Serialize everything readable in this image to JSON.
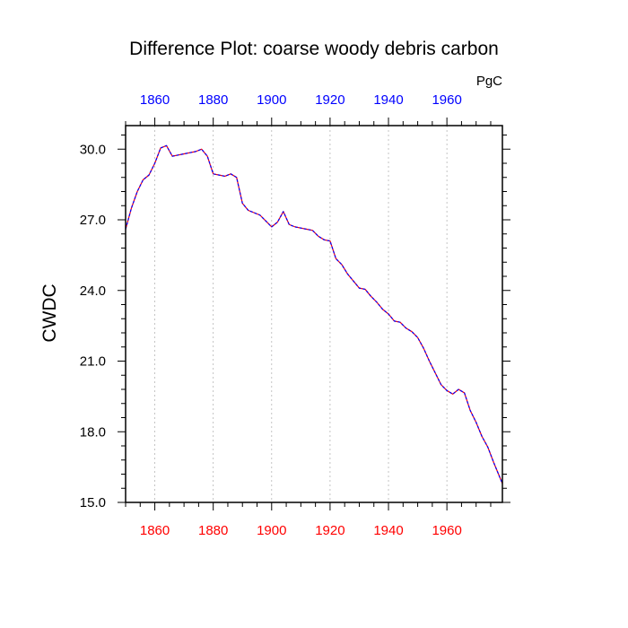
{
  "chart_data": {
    "type": "line",
    "title": "Difference Plot: coarse woody debris carbon",
    "units": "PgC",
    "xlabel": "",
    "ylabel": "CWDC",
    "xlim": [
      1850,
      1979
    ],
    "ylim": [
      15.0,
      31.0
    ],
    "x_ticks_major": [
      1860,
      1880,
      1900,
      1920,
      1940,
      1960
    ],
    "y_ticks_major": [
      15.0,
      18.0,
      21.0,
      24.0,
      27.0,
      30.0
    ],
    "y_tick_labels": [
      "15.0",
      "18.0",
      "21.0",
      "24.0",
      "27.0",
      "30.0"
    ],
    "x_tick_labels_top": [
      "1860",
      "1880",
      "1900",
      "1920",
      "1940",
      "1960"
    ],
    "x_tick_labels_bottom": [
      "1860",
      "1880",
      "1900",
      "1920",
      "1940",
      "1960"
    ],
    "top_axis_color": "#0000ff",
    "bottom_axis_color": "#ff0000",
    "grid": "vertical dashed at major x ticks",
    "series": [
      {
        "color": "#ff0000",
        "style": "solid",
        "x": [
          1850,
          1852,
          1854,
          1856,
          1858,
          1860,
          1862,
          1864,
          1866,
          1868,
          1870,
          1872,
          1874,
          1876,
          1878,
          1880,
          1882,
          1884,
          1886,
          1888,
          1890,
          1892,
          1894,
          1896,
          1898,
          1900,
          1902,
          1904,
          1906,
          1908,
          1910,
          1912,
          1914,
          1916,
          1918,
          1920,
          1922,
          1924,
          1926,
          1928,
          1930,
          1932,
          1934,
          1936,
          1938,
          1940,
          1942,
          1944,
          1946,
          1948,
          1950,
          1952,
          1954,
          1956,
          1958,
          1960,
          1962,
          1964,
          1966,
          1968,
          1970,
          1972,
          1974,
          1976,
          1979
        ],
        "values": [
          26.6,
          27.5,
          28.2,
          28.7,
          28.9,
          29.4,
          30.05,
          30.15,
          29.7,
          29.75,
          29.8,
          29.85,
          29.9,
          30.0,
          29.7,
          28.95,
          28.9,
          28.85,
          28.95,
          28.8,
          27.7,
          27.4,
          27.3,
          27.2,
          26.95,
          26.7,
          26.9,
          27.35,
          26.8,
          26.7,
          26.65,
          26.6,
          26.55,
          26.3,
          26.15,
          26.1,
          25.35,
          25.1,
          24.7,
          24.4,
          24.1,
          24.05,
          23.75,
          23.5,
          23.2,
          23.0,
          22.7,
          22.65,
          22.4,
          22.25,
          22.0,
          21.55,
          21.0,
          20.5,
          20.0,
          19.75,
          19.6,
          19.8,
          19.65,
          18.9,
          18.4,
          17.8,
          17.35,
          16.7,
          15.8
        ]
      },
      {
        "color": "#0000ff",
        "style": "dashed",
        "x": [
          1850,
          1852,
          1854,
          1856,
          1858,
          1860,
          1862,
          1864,
          1866,
          1868,
          1870,
          1872,
          1874,
          1876,
          1878,
          1880,
          1882,
          1884,
          1886,
          1888,
          1890,
          1892,
          1894,
          1896,
          1898,
          1900,
          1902,
          1904,
          1906,
          1908,
          1910,
          1912,
          1914,
          1916,
          1918,
          1920,
          1922,
          1924,
          1926,
          1928,
          1930,
          1932,
          1934,
          1936,
          1938,
          1940,
          1942,
          1944,
          1946,
          1948,
          1950,
          1952,
          1954,
          1956,
          1958,
          1960,
          1962,
          1964,
          1966,
          1968,
          1970,
          1972,
          1974,
          1976,
          1979
        ],
        "values": [
          26.6,
          27.5,
          28.2,
          28.7,
          28.9,
          29.4,
          30.05,
          30.15,
          29.7,
          29.75,
          29.8,
          29.85,
          29.9,
          30.0,
          29.7,
          28.95,
          28.9,
          28.85,
          28.95,
          28.8,
          27.7,
          27.4,
          27.3,
          27.2,
          26.95,
          26.7,
          26.9,
          27.35,
          26.8,
          26.7,
          26.65,
          26.6,
          26.55,
          26.3,
          26.15,
          26.1,
          25.35,
          25.1,
          24.7,
          24.4,
          24.1,
          24.05,
          23.75,
          23.5,
          23.2,
          23.0,
          22.7,
          22.65,
          22.4,
          22.25,
          22.0,
          21.55,
          21.0,
          20.5,
          20.0,
          19.75,
          19.6,
          19.8,
          19.65,
          18.9,
          18.4,
          17.8,
          17.35,
          16.7,
          15.8
        ]
      }
    ]
  }
}
